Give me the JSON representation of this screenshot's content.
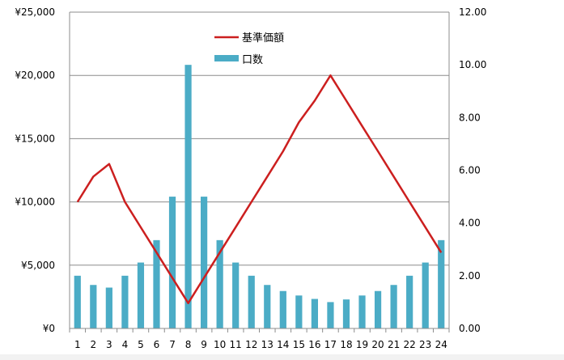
{
  "colors": {
    "bar": "#4BACC6",
    "line": "#CC1F1F",
    "grid": "#8c8c8c",
    "axis": "#8c8c8c",
    "background": "#ffffff"
  },
  "chart_data": {
    "type": "bar+line",
    "categories": [
      "1",
      "2",
      "3",
      "4",
      "5",
      "6",
      "7",
      "8",
      "9",
      "10",
      "11",
      "12",
      "13",
      "14",
      "15",
      "16",
      "17",
      "18",
      "19",
      "20",
      "21",
      "22",
      "23",
      "24"
    ],
    "series": [
      {
        "name": "口数",
        "type": "bar",
        "axis": "right",
        "values": [
          2.0,
          1.65,
          1.55,
          2.0,
          2.5,
          3.35,
          5.0,
          10.0,
          5.0,
          3.35,
          2.5,
          2.0,
          1.65,
          1.42,
          1.25,
          1.12,
          1.0,
          1.1,
          1.25,
          1.42,
          1.65,
          2.0,
          2.5,
          3.35
        ]
      },
      {
        "name": "基準価額",
        "type": "line",
        "axis": "left",
        "values": [
          10000,
          12000,
          13000,
          10000,
          8000,
          6000,
          4000,
          2000,
          4000,
          6000,
          8000,
          10000,
          12000,
          14000,
          16300,
          18000,
          20000,
          18000,
          16000,
          14000,
          12000,
          10000,
          8000,
          6000
        ]
      }
    ],
    "y_left": {
      "ticks": [
        "¥0",
        "¥5,000",
        "¥10,000",
        "¥15,000",
        "¥20,000",
        "¥25,000"
      ],
      "min": 0,
      "max": 25000,
      "step": 5000
    },
    "y_right": {
      "ticks": [
        "0.00",
        "2.00",
        "4.00",
        "6.00",
        "8.00",
        "10.00",
        "12.00"
      ],
      "min": 0,
      "max": 12,
      "step": 2
    },
    "grid": true,
    "legend": {
      "placement": "top-center",
      "items": [
        {
          "label": "基準価額",
          "kind": "line"
        },
        {
          "label": "口数",
          "kind": "bar"
        }
      ]
    }
  }
}
